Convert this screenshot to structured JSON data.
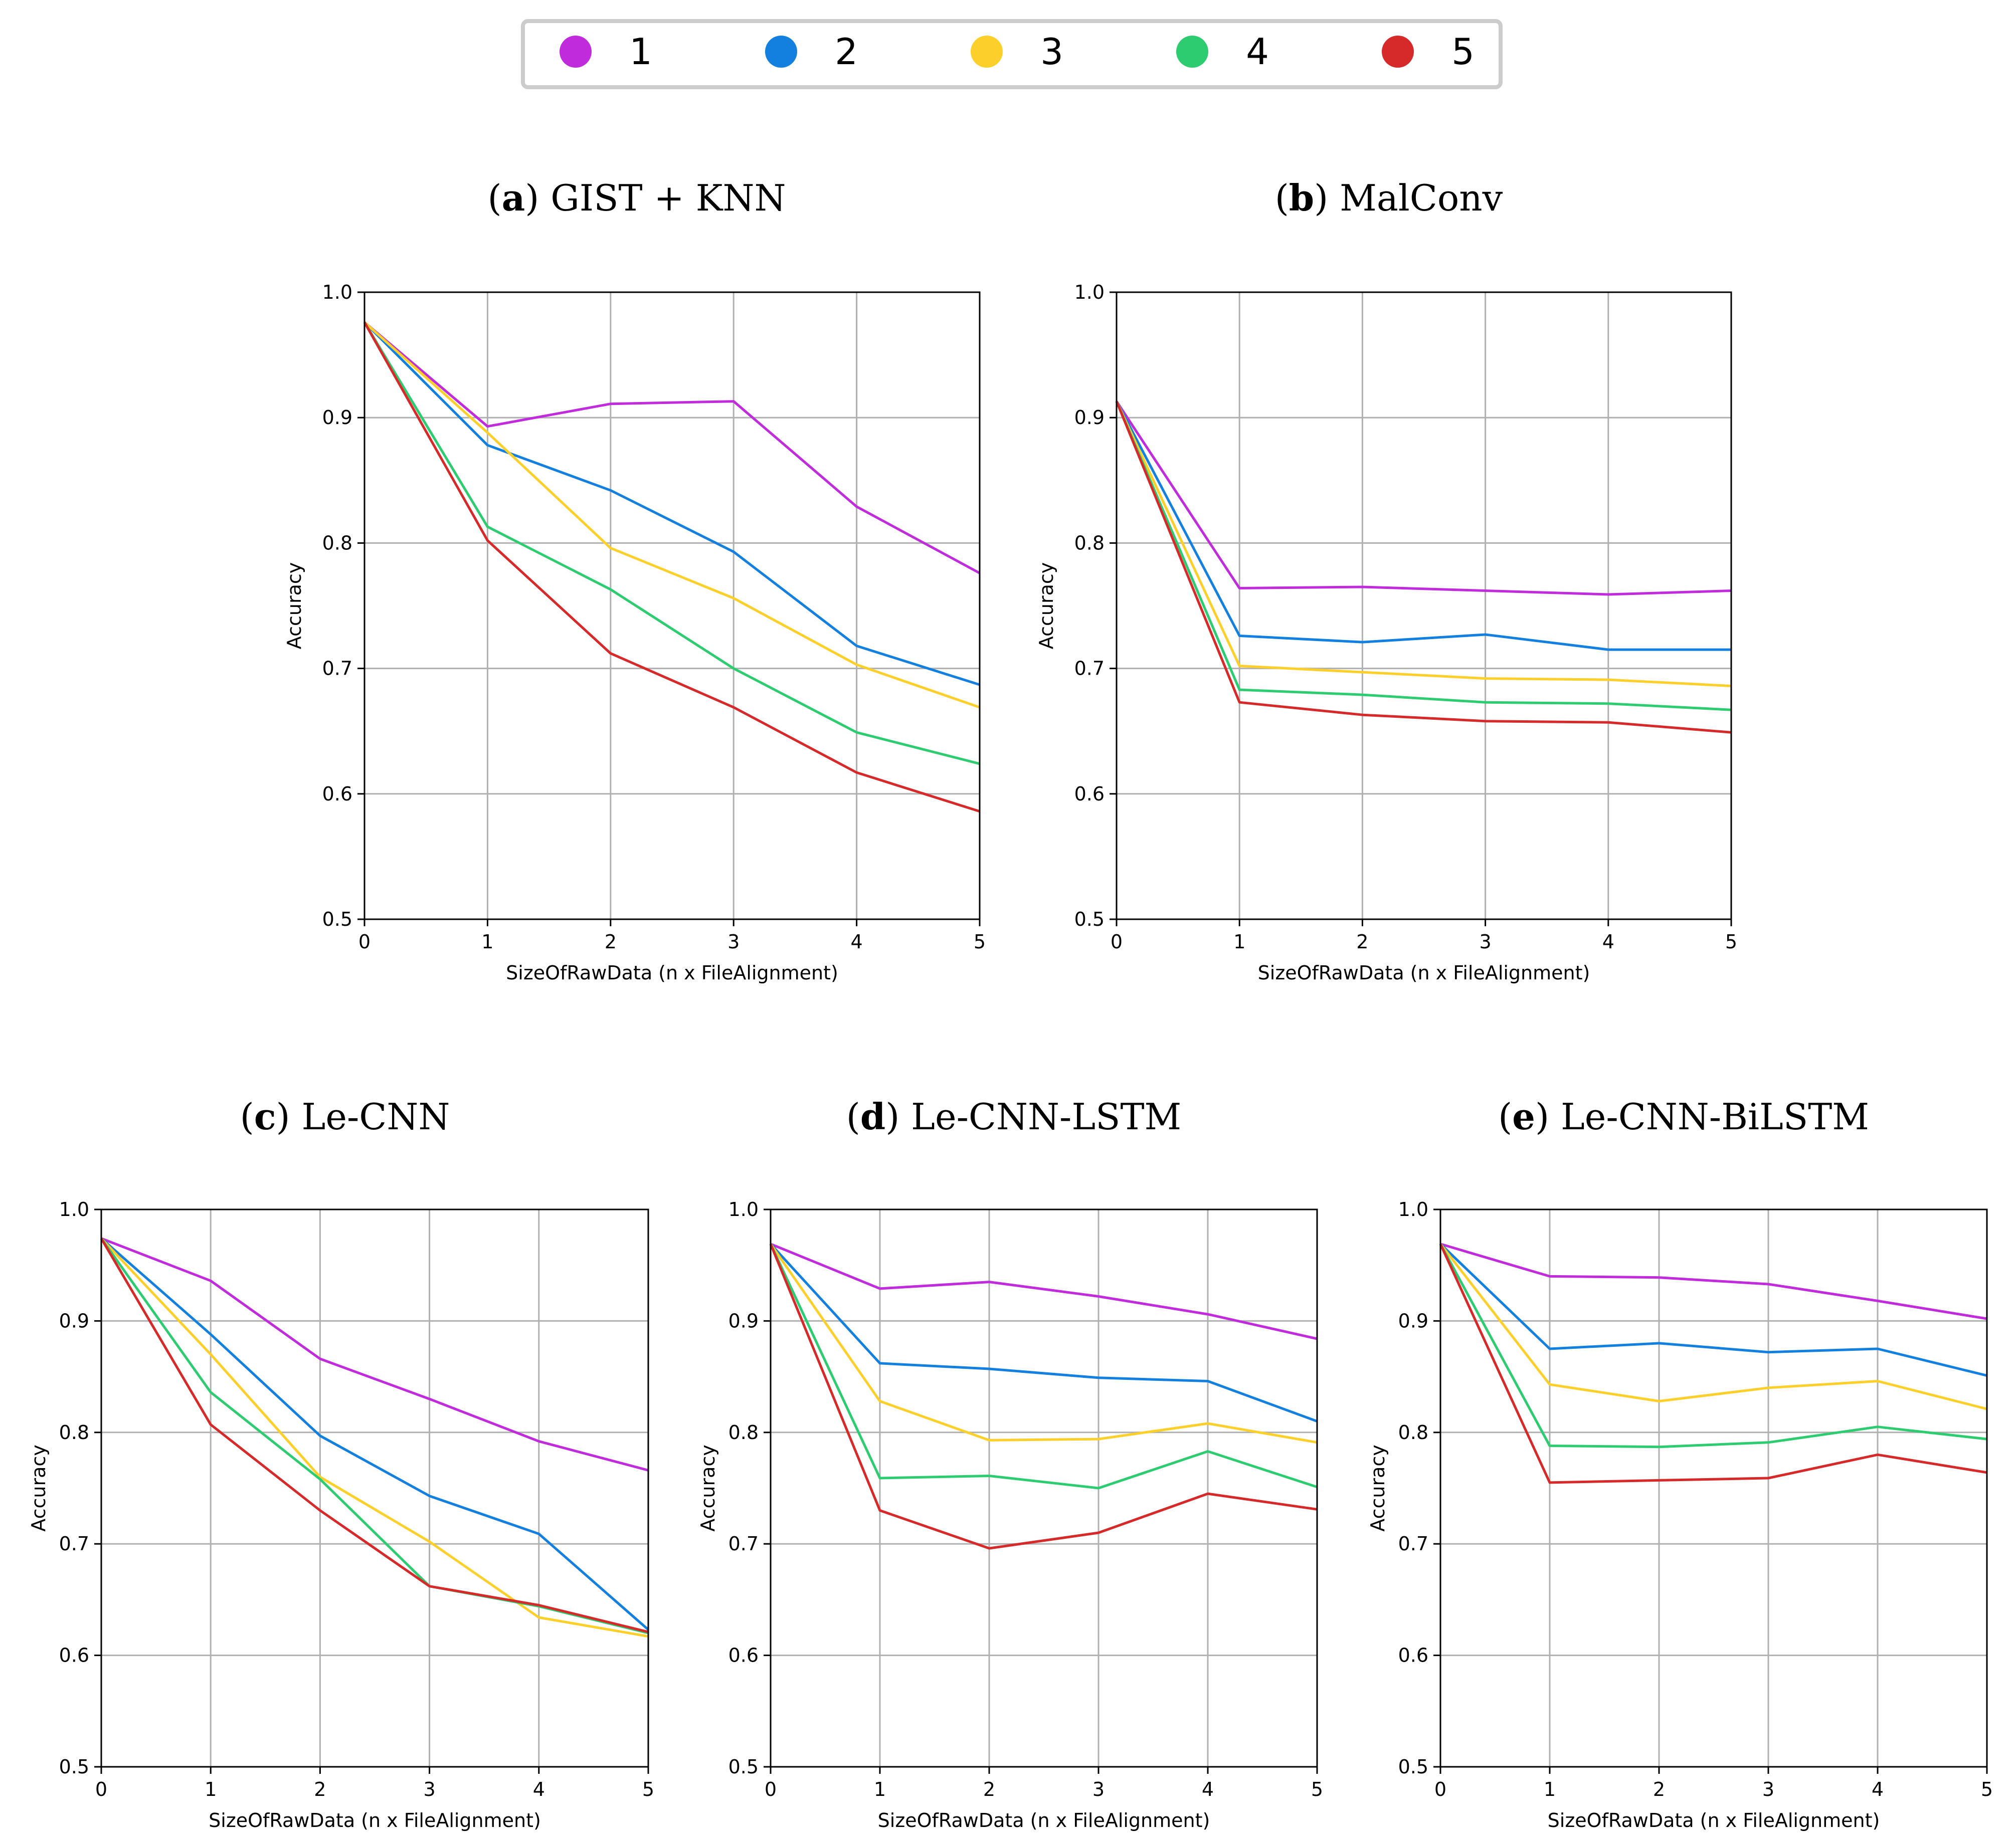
{
  "legend": {
    "items": [
      {
        "label": "1",
        "color": "#c02bdc"
      },
      {
        "label": "2",
        "color": "#1380e0"
      },
      {
        "label": "3",
        "color": "#fdcf2a"
      },
      {
        "label": "4",
        "color": "#2ecc71"
      },
      {
        "label": "5",
        "color": "#d62a2a"
      }
    ]
  },
  "chart_data": [
    {
      "type": "line",
      "panel_tag": "a",
      "title": "GIST + KNN",
      "xlabel": "SizeOfRawData (n x FileAlignment)",
      "ylabel": "Accuracy",
      "x": [
        0,
        1,
        2,
        3,
        4,
        5
      ],
      "xticks": [
        "0",
        "1",
        "2",
        "3",
        "4",
        "5"
      ],
      "yticks": [
        "0.5",
        "0.6",
        "0.7",
        "0.8",
        "0.9",
        "1.0"
      ],
      "xlim": [
        0,
        5
      ],
      "ylim": [
        0.5,
        1.0
      ],
      "grid": true,
      "series": [
        {
          "name": "1",
          "values": [
            0.976,
            0.893,
            0.911,
            0.913,
            0.829,
            0.776
          ]
        },
        {
          "name": "2",
          "values": [
            0.976,
            0.878,
            0.842,
            0.793,
            0.718,
            0.687
          ]
        },
        {
          "name": "3",
          "values": [
            0.976,
            0.888,
            0.796,
            0.756,
            0.703,
            0.669
          ]
        },
        {
          "name": "4",
          "values": [
            0.976,
            0.813,
            0.763,
            0.7,
            0.649,
            0.624
          ]
        },
        {
          "name": "5",
          "values": [
            0.976,
            0.802,
            0.712,
            0.669,
            0.617,
            0.586
          ]
        }
      ]
    },
    {
      "type": "line",
      "panel_tag": "b",
      "title": "MalConv",
      "xlabel": "SizeOfRawData (n x FileAlignment)",
      "ylabel": "Accuracy",
      "x": [
        0,
        1,
        2,
        3,
        4,
        5
      ],
      "xticks": [
        "0",
        "1",
        "2",
        "3",
        "4",
        "5"
      ],
      "yticks": [
        "0.5",
        "0.6",
        "0.7",
        "0.8",
        "0.9",
        "1.0"
      ],
      "xlim": [
        0,
        5
      ],
      "ylim": [
        0.5,
        1.0
      ],
      "grid": true,
      "series": [
        {
          "name": "1",
          "values": [
            0.913,
            0.764,
            0.765,
            0.762,
            0.759,
            0.762
          ]
        },
        {
          "name": "2",
          "values": [
            0.913,
            0.726,
            0.721,
            0.727,
            0.715,
            0.715
          ]
        },
        {
          "name": "3",
          "values": [
            0.913,
            0.702,
            0.697,
            0.692,
            0.691,
            0.686
          ]
        },
        {
          "name": "4",
          "values": [
            0.913,
            0.683,
            0.679,
            0.673,
            0.672,
            0.667
          ]
        },
        {
          "name": "5",
          "values": [
            0.913,
            0.673,
            0.663,
            0.658,
            0.657,
            0.649
          ]
        }
      ]
    },
    {
      "type": "line",
      "panel_tag": "c",
      "title": "Le-CNN",
      "xlabel": "SizeOfRawData (n x FileAlignment)",
      "ylabel": "Accuracy",
      "x": [
        0,
        1,
        2,
        3,
        4,
        5
      ],
      "xticks": [
        "0",
        "1",
        "2",
        "3",
        "4",
        "5"
      ],
      "yticks": [
        "0.5",
        "0.6",
        "0.7",
        "0.8",
        "0.9",
        "1.0"
      ],
      "xlim": [
        0,
        5
      ],
      "ylim": [
        0.5,
        1.0
      ],
      "grid": true,
      "series": [
        {
          "name": "1",
          "values": [
            0.974,
            0.936,
            0.866,
            0.83,
            0.792,
            0.766
          ]
        },
        {
          "name": "2",
          "values": [
            0.974,
            0.888,
            0.797,
            0.743,
            0.709,
            0.623
          ]
        },
        {
          "name": "3",
          "values": [
            0.974,
            0.87,
            0.76,
            0.702,
            0.634,
            0.617
          ]
        },
        {
          "name": "4",
          "values": [
            0.974,
            0.836,
            0.758,
            0.662,
            0.644,
            0.62
          ]
        },
        {
          "name": "5",
          "values": [
            0.974,
            0.807,
            0.73,
            0.662,
            0.645,
            0.621
          ]
        }
      ]
    },
    {
      "type": "line",
      "panel_tag": "d",
      "title": "Le-CNN-LSTM",
      "xlabel": "SizeOfRawData (n x FileAlignment)",
      "ylabel": "Accuracy",
      "x": [
        0,
        1,
        2,
        3,
        4,
        5
      ],
      "xticks": [
        "0",
        "1",
        "2",
        "3",
        "4",
        "5"
      ],
      "yticks": [
        "0.5",
        "0.6",
        "0.7",
        "0.8",
        "0.9",
        "1.0"
      ],
      "xlim": [
        0,
        5
      ],
      "ylim": [
        0.5,
        1.0
      ],
      "grid": true,
      "series": [
        {
          "name": "1",
          "values": [
            0.969,
            0.929,
            0.935,
            0.922,
            0.906,
            0.884
          ]
        },
        {
          "name": "2",
          "values": [
            0.969,
            0.862,
            0.857,
            0.849,
            0.846,
            0.81
          ]
        },
        {
          "name": "3",
          "values": [
            0.969,
            0.828,
            0.793,
            0.794,
            0.808,
            0.791
          ]
        },
        {
          "name": "4",
          "values": [
            0.969,
            0.759,
            0.761,
            0.75,
            0.783,
            0.751
          ]
        },
        {
          "name": "5",
          "values": [
            0.969,
            0.73,
            0.696,
            0.71,
            0.745,
            0.731
          ]
        }
      ]
    },
    {
      "type": "line",
      "panel_tag": "e",
      "title": "Le-CNN-BiLSTM",
      "xlabel": "SizeOfRawData (n x FileAlignment)",
      "ylabel": "Accuracy",
      "x": [
        0,
        1,
        2,
        3,
        4,
        5
      ],
      "xticks": [
        "0",
        "1",
        "2",
        "3",
        "4",
        "5"
      ],
      "yticks": [
        "0.5",
        "0.6",
        "0.7",
        "0.8",
        "0.9",
        "1.0"
      ],
      "xlim": [
        0,
        5
      ],
      "ylim": [
        0.5,
        1.0
      ],
      "grid": true,
      "series": [
        {
          "name": "1",
          "values": [
            0.969,
            0.94,
            0.939,
            0.933,
            0.918,
            0.902
          ]
        },
        {
          "name": "2",
          "values": [
            0.969,
            0.875,
            0.88,
            0.872,
            0.875,
            0.851
          ]
        },
        {
          "name": "3",
          "values": [
            0.969,
            0.843,
            0.828,
            0.84,
            0.846,
            0.821
          ]
        },
        {
          "name": "4",
          "values": [
            0.969,
            0.788,
            0.787,
            0.791,
            0.805,
            0.794
          ]
        },
        {
          "name": "5",
          "values": [
            0.969,
            0.755,
            0.757,
            0.759,
            0.78,
            0.764
          ]
        }
      ]
    }
  ]
}
